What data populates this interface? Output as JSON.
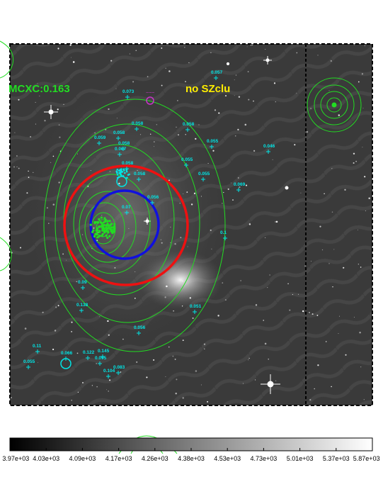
{
  "overlay_labels": {
    "mcxc": "MCXC:0.163",
    "no_sz": "no SZclu"
  },
  "colors": {
    "mcxc_label": "#22dd22",
    "no_sz_label": "#ffee00",
    "contour_green": "#22dd22",
    "circle_red": "#ee1111",
    "circle_blue": "#1111dd",
    "redshift_cyan": "#00e5e5",
    "marker_magenta": "#cc33cc"
  },
  "redshift_labels": {
    "r1": "0.057",
    "r2": "0.073",
    "r3": "0.058",
    "r4": "0.058",
    "r5": "0.058",
    "r6": "0.059",
    "r7": "0.058",
    "r8": "0.055",
    "r9": "0.046",
    "r10": "0.087",
    "r11": "0.055",
    "r12": "0.058",
    "r13": "0.055",
    "r14": "0.058",
    "r15": "0.069",
    "r16": "0.056",
    "r17": "0.07",
    "r18": "0.1",
    "r19": "0.09",
    "r20": "0.138",
    "r21": "0.051",
    "r22": "0.056",
    "r23": "0.11",
    "r24": "0.066",
    "r25": "0.122",
    "r26": "0.145",
    "r27": "0.095",
    "r28": "0.083",
    "r29": "0.104",
    "r30": "0.055"
  },
  "colorbar": {
    "ticks": [
      "3.97e+03",
      "4.03e+03",
      "4.09e+03",
      "4.17e+03",
      "4.26e+03",
      "4.38e+03",
      "4.53e+03",
      "4.73e+03",
      "5.01e+03",
      "5.37e+03",
      "5.87e+03"
    ]
  }
}
